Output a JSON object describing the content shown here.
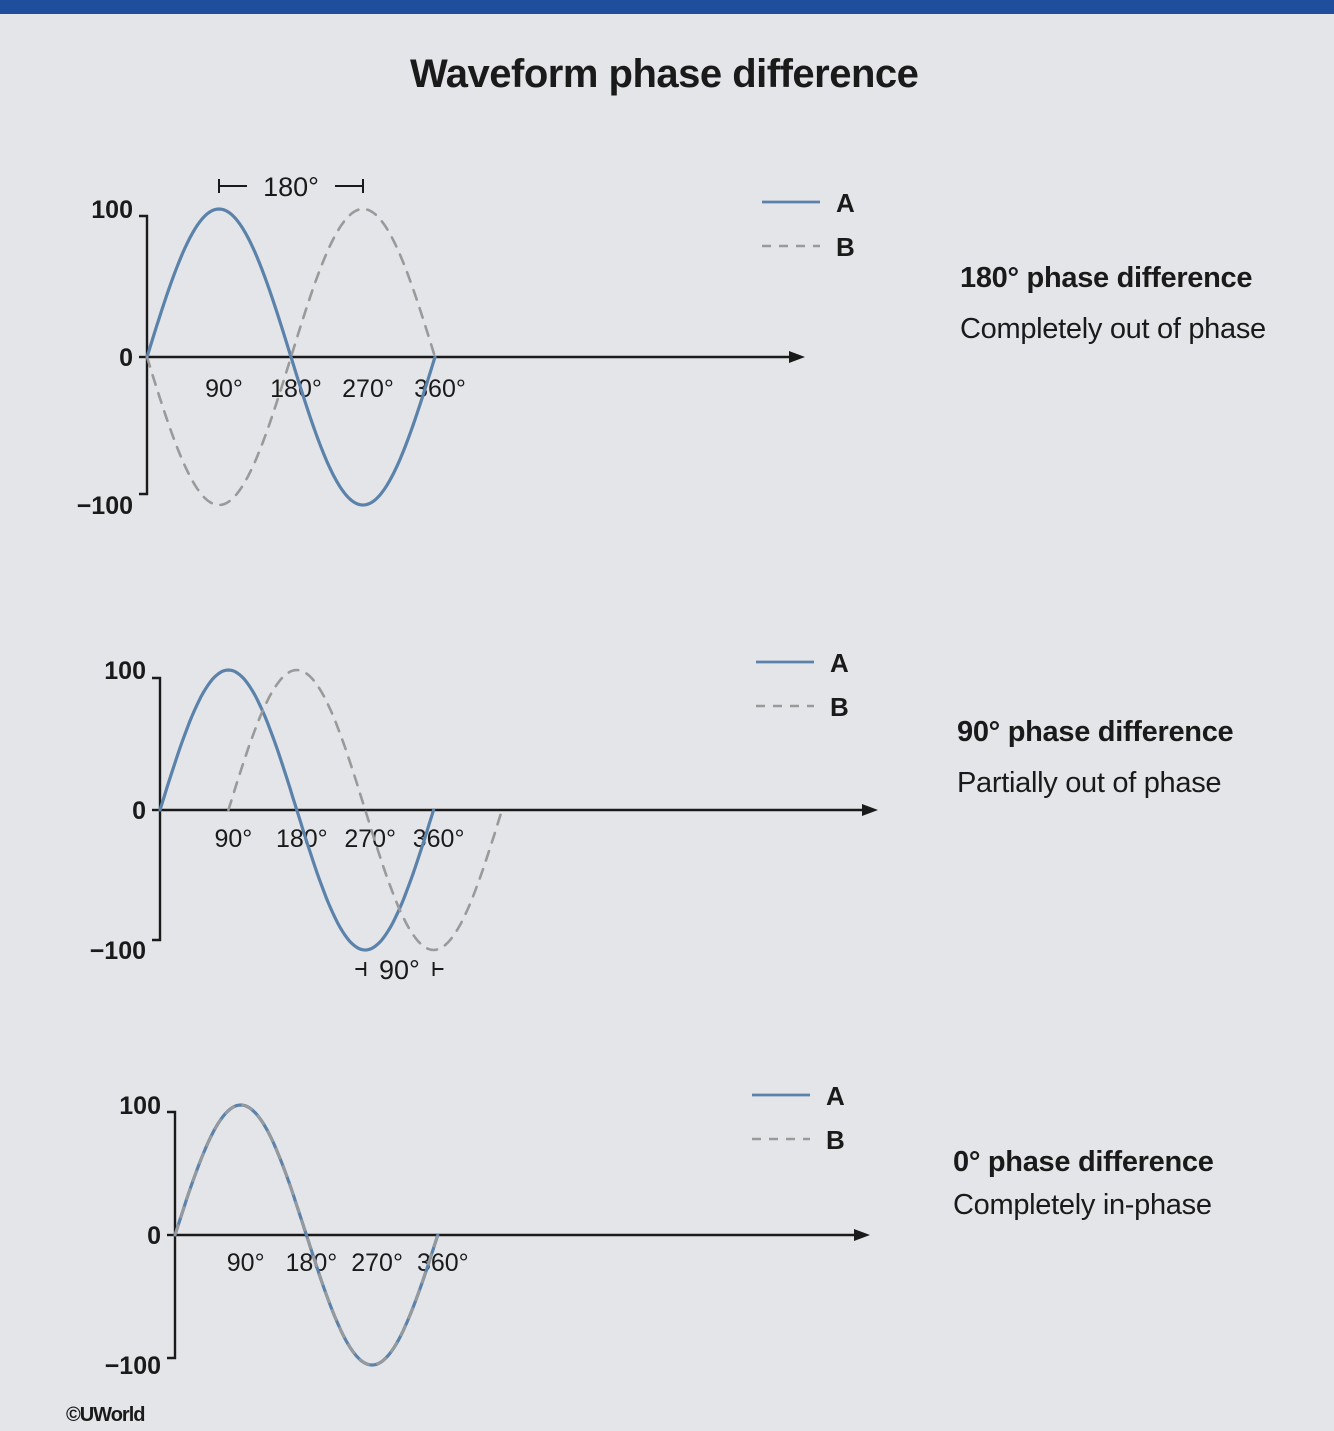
{
  "title": "Waveform phase difference",
  "copyright": "©UWorld",
  "colors": {
    "wave_a": "#5a82aa",
    "wave_b": "#9a9a9a",
    "axis": "#1a1a1a",
    "background": "#e4e5e8"
  },
  "panels": [
    {
      "id": "p180",
      "heading": "180° phase difference",
      "subtitle": "Completely out of phase",
      "y_ticks": [
        "100",
        "0",
        "−100"
      ],
      "x_ticks": [
        "90°",
        "180°",
        "270°",
        "360°"
      ],
      "legend": [
        "A",
        "B"
      ],
      "bracket_label": "180°",
      "chart_data": {
        "type": "line",
        "x_unit": "degrees",
        "ylim": [
          -100,
          100
        ],
        "series": [
          {
            "name": "A",
            "style": "solid",
            "phase_shift_deg": 0,
            "x_range": [
              0,
              360
            ]
          },
          {
            "name": "B",
            "style": "dashed",
            "phase_shift_deg": 180,
            "x_range": [
              0,
              360
            ]
          }
        ]
      }
    },
    {
      "id": "p90",
      "heading": "90° phase difference",
      "subtitle": "Partially out of phase",
      "y_ticks": [
        "100",
        "0",
        "−100"
      ],
      "x_ticks": [
        "90°",
        "180°",
        "270°",
        "360°"
      ],
      "legend": [
        "A",
        "B"
      ],
      "bracket_label": "90°",
      "chart_data": {
        "type": "line",
        "x_unit": "degrees",
        "ylim": [
          -100,
          100
        ],
        "series": [
          {
            "name": "A",
            "style": "solid",
            "phase_shift_deg": 0,
            "x_range": [
              0,
              360
            ]
          },
          {
            "name": "B",
            "style": "dashed",
            "phase_shift_deg": 90,
            "x_range": [
              90,
              450
            ]
          }
        ]
      }
    },
    {
      "id": "p0",
      "heading": "0° phase difference",
      "subtitle": "Completely in-phase",
      "y_ticks": [
        "100",
        "0",
        "−100"
      ],
      "x_ticks": [
        "90°",
        "180°",
        "270°",
        "360°"
      ],
      "legend": [
        "A",
        "B"
      ],
      "chart_data": {
        "type": "line",
        "x_unit": "degrees",
        "ylim": [
          -100,
          100
        ],
        "series": [
          {
            "name": "A",
            "style": "solid",
            "phase_shift_deg": 0,
            "x_range": [
              0,
              360
            ]
          },
          {
            "name": "B",
            "style": "dashed",
            "phase_shift_deg": 0,
            "x_range": [
              0,
              360
            ]
          }
        ]
      }
    }
  ]
}
